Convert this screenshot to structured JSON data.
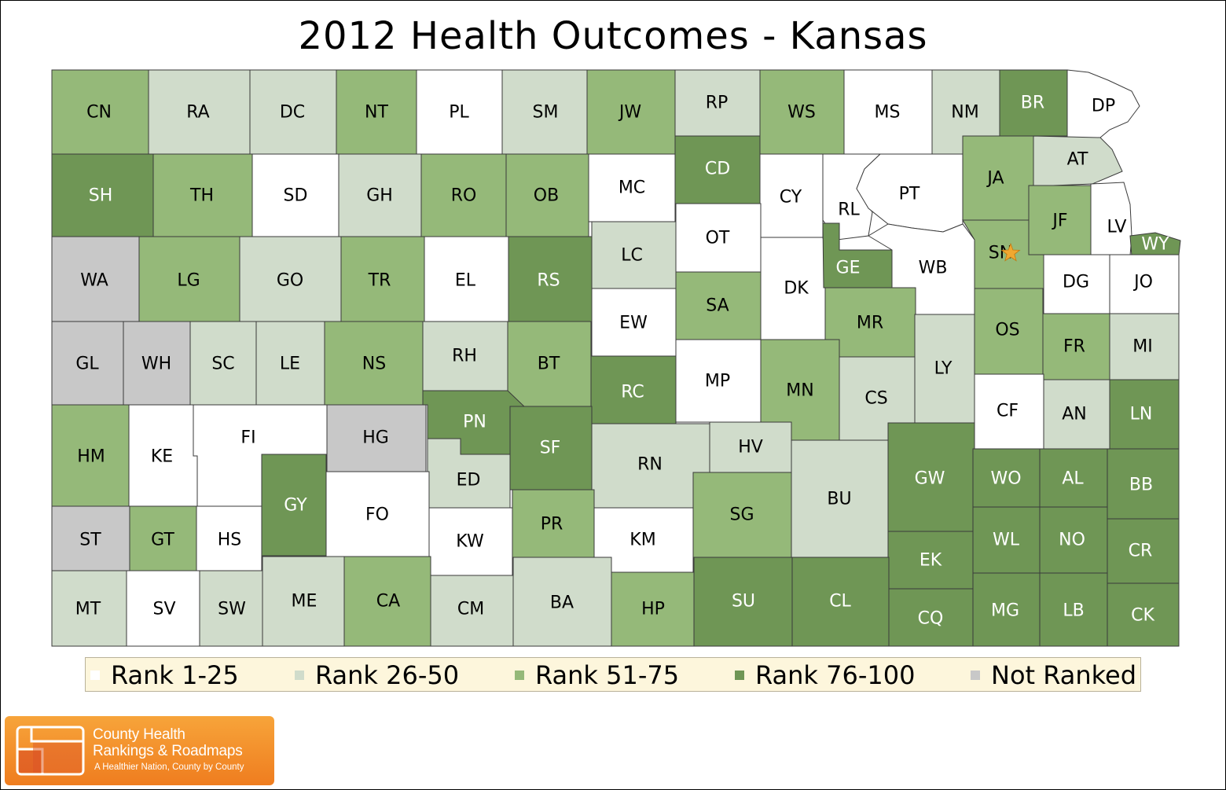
{
  "title": "2012 Health Outcomes - Kansas",
  "colors": {
    "rank_1_25": "#ffffff",
    "rank_26_50": "#d0dccb",
    "rank_51_75": "#95b979",
    "rank_76_100": "#6f9655",
    "not_ranked": "#c8c8c8",
    "border": "#3a3a3a",
    "star": "#f0a830"
  },
  "legend": [
    {
      "label": "Rank 1-25",
      "category": "rank_1_25"
    },
    {
      "label": "Rank 26-50",
      "category": "rank_26_50"
    },
    {
      "label": "Rank 51-75",
      "category": "rank_51_75"
    },
    {
      "label": "Rank 76-100",
      "category": "rank_76_100"
    },
    {
      "label": "Not Ranked",
      "category": "not_ranked"
    }
  ],
  "counties": [
    {
      "code": "CN",
      "category": "rank_51_75"
    },
    {
      "code": "RA",
      "category": "rank_26_50"
    },
    {
      "code": "DC",
      "category": "rank_26_50"
    },
    {
      "code": "NT",
      "category": "rank_51_75"
    },
    {
      "code": "PL",
      "category": "rank_1_25"
    },
    {
      "code": "SM",
      "category": "rank_26_50"
    },
    {
      "code": "JW",
      "category": "rank_51_75"
    },
    {
      "code": "RP",
      "category": "rank_26_50"
    },
    {
      "code": "WS",
      "category": "rank_51_75"
    },
    {
      "code": "MS",
      "category": "rank_1_25"
    },
    {
      "code": "NM",
      "category": "rank_26_50"
    },
    {
      "code": "BR",
      "category": "rank_76_100"
    },
    {
      "code": "DP",
      "category": "rank_1_25"
    },
    {
      "code": "SH",
      "category": "rank_76_100"
    },
    {
      "code": "TH",
      "category": "rank_51_75"
    },
    {
      "code": "SD",
      "category": "rank_1_25"
    },
    {
      "code": "GH",
      "category": "rank_26_50"
    },
    {
      "code": "RO",
      "category": "rank_51_75"
    },
    {
      "code": "OB",
      "category": "rank_51_75"
    },
    {
      "code": "MC",
      "category": "rank_1_25"
    },
    {
      "code": "CD",
      "category": "rank_76_100"
    },
    {
      "code": "CY",
      "category": "rank_1_25"
    },
    {
      "code": "RL",
      "category": "rank_1_25"
    },
    {
      "code": "PT",
      "category": "rank_1_25"
    },
    {
      "code": "JA",
      "category": "rank_51_75"
    },
    {
      "code": "AT",
      "category": "rank_26_50"
    },
    {
      "code": "JF",
      "category": "rank_51_75"
    },
    {
      "code": "LV",
      "category": "rank_1_25"
    },
    {
      "code": "WY",
      "category": "rank_76_100"
    },
    {
      "code": "WA",
      "category": "not_ranked"
    },
    {
      "code": "LG",
      "category": "rank_51_75"
    },
    {
      "code": "GO",
      "category": "rank_26_50"
    },
    {
      "code": "TR",
      "category": "rank_51_75"
    },
    {
      "code": "EL",
      "category": "rank_1_25"
    },
    {
      "code": "RS",
      "category": "rank_76_100"
    },
    {
      "code": "LC",
      "category": "rank_26_50"
    },
    {
      "code": "OT",
      "category": "rank_1_25"
    },
    {
      "code": "DK",
      "category": "rank_1_25"
    },
    {
      "code": "GE",
      "category": "rank_76_100"
    },
    {
      "code": "WB",
      "category": "rank_1_25"
    },
    {
      "code": "SN",
      "category": "rank_51_75"
    },
    {
      "code": "DG",
      "category": "rank_1_25"
    },
    {
      "code": "JO",
      "category": "rank_1_25"
    },
    {
      "code": "EW",
      "category": "rank_1_25"
    },
    {
      "code": "SA",
      "category": "rank_51_75"
    },
    {
      "code": "MR",
      "category": "rank_51_75"
    },
    {
      "code": "OS",
      "category": "rank_51_75"
    },
    {
      "code": "FR",
      "category": "rank_51_75"
    },
    {
      "code": "MI",
      "category": "rank_26_50"
    },
    {
      "code": "GL",
      "category": "not_ranked"
    },
    {
      "code": "WH",
      "category": "not_ranked"
    },
    {
      "code": "SC",
      "category": "rank_26_50"
    },
    {
      "code": "LE",
      "category": "rank_26_50"
    },
    {
      "code": "NS",
      "category": "rank_51_75"
    },
    {
      "code": "RH",
      "category": "rank_26_50"
    },
    {
      "code": "BT",
      "category": "rank_51_75"
    },
    {
      "code": "RC",
      "category": "rank_76_100"
    },
    {
      "code": "MP",
      "category": "rank_1_25"
    },
    {
      "code": "MN",
      "category": "rank_51_75"
    },
    {
      "code": "CS",
      "category": "rank_26_50"
    },
    {
      "code": "LY",
      "category": "rank_26_50"
    },
    {
      "code": "CF",
      "category": "rank_1_25"
    },
    {
      "code": "AN",
      "category": "rank_26_50"
    },
    {
      "code": "LN",
      "category": "rank_76_100"
    },
    {
      "code": "HM",
      "category": "rank_51_75"
    },
    {
      "code": "KE",
      "category": "rank_1_25"
    },
    {
      "code": "FI",
      "category": "rank_1_25"
    },
    {
      "code": "HG",
      "category": "not_ranked"
    },
    {
      "code": "PN",
      "category": "rank_76_100"
    },
    {
      "code": "SF",
      "category": "rank_76_100"
    },
    {
      "code": "HV",
      "category": "rank_26_50"
    },
    {
      "code": "RN",
      "category": "rank_26_50"
    },
    {
      "code": "ED",
      "category": "rank_26_50"
    },
    {
      "code": "GY",
      "category": "rank_76_100"
    },
    {
      "code": "GW",
      "category": "rank_76_100"
    },
    {
      "code": "BU",
      "category": "rank_26_50"
    },
    {
      "code": "WO",
      "category": "rank_76_100"
    },
    {
      "code": "AL",
      "category": "rank_76_100"
    },
    {
      "code": "BB",
      "category": "rank_76_100"
    },
    {
      "code": "ST",
      "category": "not_ranked"
    },
    {
      "code": "GT",
      "category": "rank_51_75"
    },
    {
      "code": "HS",
      "category": "rank_1_25"
    },
    {
      "code": "FO",
      "category": "rank_1_25"
    },
    {
      "code": "KW",
      "category": "rank_1_25"
    },
    {
      "code": "PR",
      "category": "rank_51_75"
    },
    {
      "code": "KM",
      "category": "rank_1_25"
    },
    {
      "code": "SG",
      "category": "rank_51_75"
    },
    {
      "code": "EK",
      "category": "rank_76_100"
    },
    {
      "code": "WL",
      "category": "rank_76_100"
    },
    {
      "code": "NO",
      "category": "rank_76_100"
    },
    {
      "code": "CR",
      "category": "rank_76_100"
    },
    {
      "code": "MT",
      "category": "rank_26_50"
    },
    {
      "code": "SV",
      "category": "rank_1_25"
    },
    {
      "code": "SW",
      "category": "rank_26_50"
    },
    {
      "code": "ME",
      "category": "rank_26_50"
    },
    {
      "code": "CA",
      "category": "rank_51_75"
    },
    {
      "code": "CM",
      "category": "rank_26_50"
    },
    {
      "code": "BA",
      "category": "rank_26_50"
    },
    {
      "code": "HP",
      "category": "rank_51_75"
    },
    {
      "code": "SU",
      "category": "rank_76_100"
    },
    {
      "code": "CL",
      "category": "rank_76_100"
    },
    {
      "code": "CQ",
      "category": "rank_76_100"
    },
    {
      "code": "MG",
      "category": "rank_76_100"
    },
    {
      "code": "LB",
      "category": "rank_76_100"
    },
    {
      "code": "CK",
      "category": "rank_76_100"
    }
  ],
  "capital_marker": {
    "county": "SN",
    "icon": "star-icon"
  },
  "logo": {
    "name_line1": "County Health",
    "name_line2": "Rankings & Roadmaps",
    "tagline": "A Healthier Nation, County by County"
  }
}
